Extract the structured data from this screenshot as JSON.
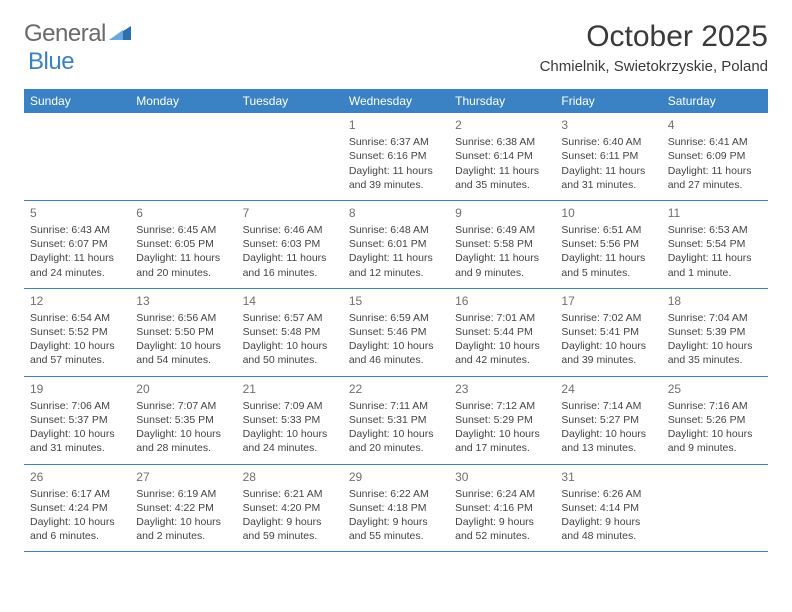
{
  "logo": {
    "text1": "General",
    "text2": "Blue",
    "icon_color": "#2f6fb0"
  },
  "title": "October 2025",
  "subtitle": "Chmielnik, Swietokrzyskie, Poland",
  "colors": {
    "header_bg": "#3a82c4",
    "header_text": "#ffffff",
    "border": "#3a82c4",
    "text": "#444444",
    "daynum": "#707070",
    "background": "#ffffff"
  },
  "day_headers": [
    "Sunday",
    "Monday",
    "Tuesday",
    "Wednesday",
    "Thursday",
    "Friday",
    "Saturday"
  ],
  "weeks": [
    [
      null,
      null,
      null,
      {
        "n": "1",
        "sr": "Sunrise: 6:37 AM",
        "ss": "Sunset: 6:16 PM",
        "dl": "Daylight: 11 hours and 39 minutes."
      },
      {
        "n": "2",
        "sr": "Sunrise: 6:38 AM",
        "ss": "Sunset: 6:14 PM",
        "dl": "Daylight: 11 hours and 35 minutes."
      },
      {
        "n": "3",
        "sr": "Sunrise: 6:40 AM",
        "ss": "Sunset: 6:11 PM",
        "dl": "Daylight: 11 hours and 31 minutes."
      },
      {
        "n": "4",
        "sr": "Sunrise: 6:41 AM",
        "ss": "Sunset: 6:09 PM",
        "dl": "Daylight: 11 hours and 27 minutes."
      }
    ],
    [
      {
        "n": "5",
        "sr": "Sunrise: 6:43 AM",
        "ss": "Sunset: 6:07 PM",
        "dl": "Daylight: 11 hours and 24 minutes."
      },
      {
        "n": "6",
        "sr": "Sunrise: 6:45 AM",
        "ss": "Sunset: 6:05 PM",
        "dl": "Daylight: 11 hours and 20 minutes."
      },
      {
        "n": "7",
        "sr": "Sunrise: 6:46 AM",
        "ss": "Sunset: 6:03 PM",
        "dl": "Daylight: 11 hours and 16 minutes."
      },
      {
        "n": "8",
        "sr": "Sunrise: 6:48 AM",
        "ss": "Sunset: 6:01 PM",
        "dl": "Daylight: 11 hours and 12 minutes."
      },
      {
        "n": "9",
        "sr": "Sunrise: 6:49 AM",
        "ss": "Sunset: 5:58 PM",
        "dl": "Daylight: 11 hours and 9 minutes."
      },
      {
        "n": "10",
        "sr": "Sunrise: 6:51 AM",
        "ss": "Sunset: 5:56 PM",
        "dl": "Daylight: 11 hours and 5 minutes."
      },
      {
        "n": "11",
        "sr": "Sunrise: 6:53 AM",
        "ss": "Sunset: 5:54 PM",
        "dl": "Daylight: 11 hours and 1 minute."
      }
    ],
    [
      {
        "n": "12",
        "sr": "Sunrise: 6:54 AM",
        "ss": "Sunset: 5:52 PM",
        "dl": "Daylight: 10 hours and 57 minutes."
      },
      {
        "n": "13",
        "sr": "Sunrise: 6:56 AM",
        "ss": "Sunset: 5:50 PM",
        "dl": "Daylight: 10 hours and 54 minutes."
      },
      {
        "n": "14",
        "sr": "Sunrise: 6:57 AM",
        "ss": "Sunset: 5:48 PM",
        "dl": "Daylight: 10 hours and 50 minutes."
      },
      {
        "n": "15",
        "sr": "Sunrise: 6:59 AM",
        "ss": "Sunset: 5:46 PM",
        "dl": "Daylight: 10 hours and 46 minutes."
      },
      {
        "n": "16",
        "sr": "Sunrise: 7:01 AM",
        "ss": "Sunset: 5:44 PM",
        "dl": "Daylight: 10 hours and 42 minutes."
      },
      {
        "n": "17",
        "sr": "Sunrise: 7:02 AM",
        "ss": "Sunset: 5:41 PM",
        "dl": "Daylight: 10 hours and 39 minutes."
      },
      {
        "n": "18",
        "sr": "Sunrise: 7:04 AM",
        "ss": "Sunset: 5:39 PM",
        "dl": "Daylight: 10 hours and 35 minutes."
      }
    ],
    [
      {
        "n": "19",
        "sr": "Sunrise: 7:06 AM",
        "ss": "Sunset: 5:37 PM",
        "dl": "Daylight: 10 hours and 31 minutes."
      },
      {
        "n": "20",
        "sr": "Sunrise: 7:07 AM",
        "ss": "Sunset: 5:35 PM",
        "dl": "Daylight: 10 hours and 28 minutes."
      },
      {
        "n": "21",
        "sr": "Sunrise: 7:09 AM",
        "ss": "Sunset: 5:33 PM",
        "dl": "Daylight: 10 hours and 24 minutes."
      },
      {
        "n": "22",
        "sr": "Sunrise: 7:11 AM",
        "ss": "Sunset: 5:31 PM",
        "dl": "Daylight: 10 hours and 20 minutes."
      },
      {
        "n": "23",
        "sr": "Sunrise: 7:12 AM",
        "ss": "Sunset: 5:29 PM",
        "dl": "Daylight: 10 hours and 17 minutes."
      },
      {
        "n": "24",
        "sr": "Sunrise: 7:14 AM",
        "ss": "Sunset: 5:27 PM",
        "dl": "Daylight: 10 hours and 13 minutes."
      },
      {
        "n": "25",
        "sr": "Sunrise: 7:16 AM",
        "ss": "Sunset: 5:26 PM",
        "dl": "Daylight: 10 hours and 9 minutes."
      }
    ],
    [
      {
        "n": "26",
        "sr": "Sunrise: 6:17 AM",
        "ss": "Sunset: 4:24 PM",
        "dl": "Daylight: 10 hours and 6 minutes."
      },
      {
        "n": "27",
        "sr": "Sunrise: 6:19 AM",
        "ss": "Sunset: 4:22 PM",
        "dl": "Daylight: 10 hours and 2 minutes."
      },
      {
        "n": "28",
        "sr": "Sunrise: 6:21 AM",
        "ss": "Sunset: 4:20 PM",
        "dl": "Daylight: 9 hours and 59 minutes."
      },
      {
        "n": "29",
        "sr": "Sunrise: 6:22 AM",
        "ss": "Sunset: 4:18 PM",
        "dl": "Daylight: 9 hours and 55 minutes."
      },
      {
        "n": "30",
        "sr": "Sunrise: 6:24 AM",
        "ss": "Sunset: 4:16 PM",
        "dl": "Daylight: 9 hours and 52 minutes."
      },
      {
        "n": "31",
        "sr": "Sunrise: 6:26 AM",
        "ss": "Sunset: 4:14 PM",
        "dl": "Daylight: 9 hours and 48 minutes."
      },
      null
    ]
  ]
}
